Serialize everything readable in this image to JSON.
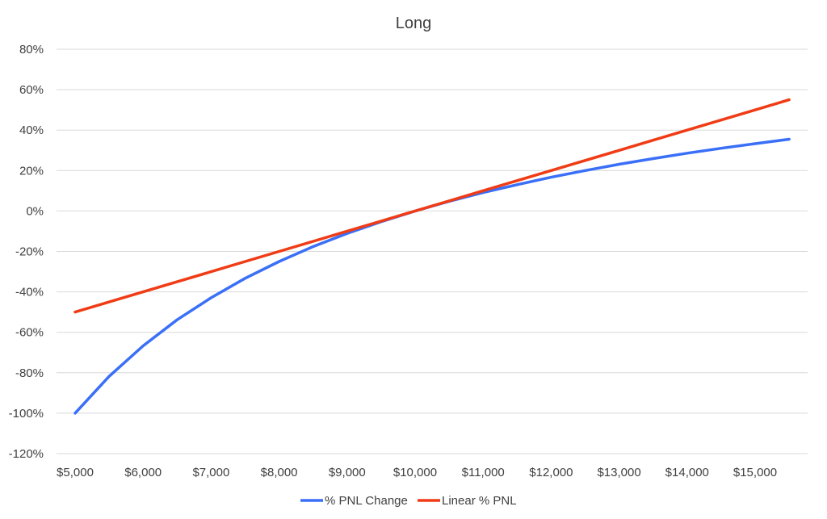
{
  "chart_data": {
    "type": "line",
    "title": "Long",
    "xlabel": "",
    "ylabel": "",
    "x": [
      5000,
      5500,
      6000,
      6500,
      7000,
      7500,
      8000,
      8500,
      9000,
      9500,
      10000,
      10500,
      11000,
      11500,
      12000,
      12500,
      13000,
      13500,
      14000,
      14500,
      15000,
      15500
    ],
    "xlim": [
      5000,
      15500
    ],
    "ylim": [
      -120,
      80
    ],
    "x_tick_values": [
      5000,
      6000,
      7000,
      8000,
      9000,
      10000,
      11000,
      12000,
      13000,
      14000,
      15000
    ],
    "x_tick_labels": [
      "$5,000",
      "$6,000",
      "$7,000",
      "$8,000",
      "$9,000",
      "$10,000",
      "$11,000",
      "$12,000",
      "$13,000",
      "$14,000",
      "$15,000"
    ],
    "y_tick_values": [
      80,
      60,
      40,
      20,
      0,
      -20,
      -40,
      -60,
      -80,
      -100,
      -120
    ],
    "y_tick_labels": [
      "80%",
      "60%",
      "40%",
      "20%",
      "0%",
      "-20%",
      "-40%",
      "-60%",
      "-80%",
      "-100%",
      "-120%"
    ],
    "grid": true,
    "legend_position": "bottom",
    "series": [
      {
        "name": "% PNL Change",
        "color": "#3a6ff7",
        "values": [
          -100,
          -81.8,
          -66.7,
          -53.8,
          -42.9,
          -33.3,
          -25.0,
          -17.6,
          -11.1,
          -5.3,
          0,
          4.8,
          9.1,
          13.0,
          16.7,
          20.0,
          23.1,
          25.9,
          28.6,
          31.0,
          33.3,
          35.5
        ]
      },
      {
        "name": "Linear % PNL",
        "color": "#f03c16",
        "values": [
          -50,
          -45,
          -40,
          -35,
          -30,
          -25,
          -20,
          -15,
          -10,
          -5,
          0,
          5,
          10,
          15,
          20,
          25,
          30,
          35,
          40,
          45,
          50,
          55
        ]
      }
    ]
  }
}
